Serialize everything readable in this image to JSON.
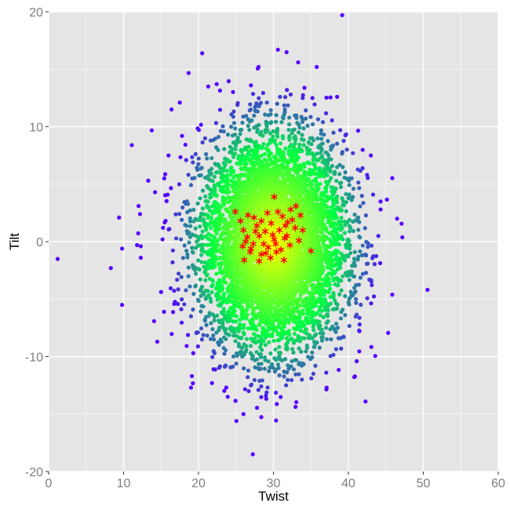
{
  "chart_data": {
    "type": "scatter",
    "title": "",
    "xlabel": "Twist",
    "ylabel": "Tilt",
    "xlim": [
      0,
      60
    ],
    "ylim": [
      -20,
      20
    ],
    "x_ticks": [
      0,
      10,
      20,
      30,
      40,
      50,
      60
    ],
    "y_ticks": [
      -20,
      -10,
      0,
      10,
      20
    ],
    "x_tick_labels": [
      "0",
      "10",
      "20",
      "30",
      "40",
      "50",
      "60"
    ],
    "y_tick_labels": [
      "-20",
      "-10",
      "0",
      "10",
      "20"
    ],
    "grid": true,
    "panel_background": "#e5e5e5",
    "grid_color": "#ffffff",
    "density_gradient": {
      "center": [
        30,
        0
      ],
      "inner_color": "#ffff00",
      "mid_color": "#00ff40",
      "outer_color": "#5500ff",
      "approx_sd": [
        4.8,
        4.6
      ]
    },
    "series": [
      {
        "marker": "circle",
        "colored_by_density": true,
        "points": [
          [
            1.2,
            -1.5
          ],
          [
            8.3,
            -2.3
          ],
          [
            9.4,
            2.1
          ],
          [
            9.8,
            -0.6
          ],
          [
            9.8,
            -5.5
          ],
          [
            11.1,
            8.4
          ],
          [
            11.8,
            -0.3
          ],
          [
            12.2,
            2.4
          ],
          [
            12.3,
            -0.4
          ],
          [
            12.0,
            3.1
          ],
          [
            12.3,
            -1.4
          ],
          [
            16.4,
            11.5
          ],
          [
            17.5,
            12.1
          ],
          [
            19.0,
            -12.7
          ],
          [
            21.3,
            13.5
          ],
          [
            21.8,
            -12.3
          ],
          [
            26.0,
            -15.0
          ],
          [
            27.0,
            13.6
          ],
          [
            30.6,
            16.7
          ],
          [
            33.3,
            15.6
          ],
          [
            31.8,
            13.2
          ],
          [
            32.3,
            12.8
          ],
          [
            35.2,
            12.5
          ],
          [
            38.5,
            12.6
          ],
          [
            37.1,
            -12.7
          ],
          [
            43.0,
            7.5
          ],
          [
            44.3,
            3.5
          ],
          [
            46.5,
            2.0
          ],
          [
            44.0,
            0.5
          ],
          [
            41.0,
            -5.0
          ],
          [
            14.5,
            -8.7
          ],
          [
            14.2,
            4.3
          ],
          [
            15.4,
            -6.1
          ],
          [
            16.0,
            7.5
          ],
          [
            17.8,
            9.2
          ],
          [
            19.3,
            -9.7
          ],
          [
            22.0,
            -11.1
          ],
          [
            25.2,
            11.9
          ],
          [
            26.7,
            -13.0
          ],
          [
            29.0,
            -13.4
          ],
          [
            33.8,
            -12.0
          ],
          [
            35.6,
            -10.8
          ],
          [
            36.6,
            10.4
          ],
          [
            40.6,
            7.7
          ],
          [
            41.5,
            -7.2
          ],
          [
            42.5,
            5.8
          ],
          [
            42.8,
            -3.3
          ],
          [
            15.2,
            0.2
          ]
        ]
      },
      {
        "marker": "asterisk",
        "color": "#ff0000",
        "points": [
          [
            24.9,
            2.6
          ],
          [
            25.6,
            1.8
          ],
          [
            26.0,
            1.0
          ],
          [
            26.5,
            0.4
          ],
          [
            25.9,
            -0.4
          ],
          [
            26.9,
            -0.9
          ],
          [
            26.1,
            -1.6
          ],
          [
            27.3,
            -0.2
          ],
          [
            27.8,
            1.4
          ],
          [
            28.1,
            0.5
          ],
          [
            28.4,
            -1.1
          ],
          [
            28.9,
            0.9
          ],
          [
            29.3,
            -0.5
          ],
          [
            29.7,
            1.6
          ],
          [
            30.1,
            0.2
          ],
          [
            30.4,
            -0.9
          ],
          [
            30.8,
            1.0
          ],
          [
            31.2,
            2.2
          ],
          [
            31.5,
            0.3
          ],
          [
            31.9,
            1.7
          ],
          [
            32.3,
            2.8
          ],
          [
            32.5,
            1.9
          ],
          [
            33.0,
            3.1
          ],
          [
            33.6,
            2.3
          ],
          [
            33.9,
            1.0
          ],
          [
            32.2,
            -0.3
          ],
          [
            31.4,
            -1.6
          ],
          [
            29.6,
            -1.4
          ],
          [
            28.7,
            -0.2
          ],
          [
            27.4,
            2.1
          ],
          [
            30.1,
            3.9
          ],
          [
            27.6,
            0.9
          ],
          [
            26.6,
            2.3
          ],
          [
            35.0,
            -0.8
          ],
          [
            28.1,
            -1.7
          ],
          [
            29.9,
            0.6
          ],
          [
            31.0,
            -0.7
          ],
          [
            32.9,
            1.2
          ],
          [
            27.0,
            -0.6
          ],
          [
            29.2,
            2.5
          ],
          [
            30.6,
            2.6
          ],
          [
            31.8,
            0.5
          ],
          [
            28.4,
            1.8
          ],
          [
            33.4,
            0.1
          ],
          [
            26.3,
            0.0
          ],
          [
            30.3,
            -0.2
          ],
          [
            29.0,
            -1.0
          ],
          [
            31.6,
            1.4
          ]
        ]
      }
    ]
  }
}
